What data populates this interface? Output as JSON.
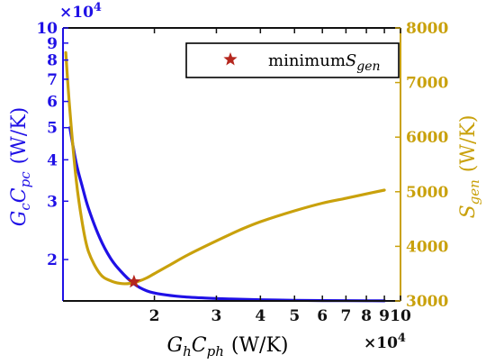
{
  "chart_data": {
    "type": "line",
    "x_axis": {
      "label": "G_h C_ph (W/K)",
      "label_parts": {
        "main": "G",
        "sub1": "h",
        "mid": "C",
        "sub2": "ph",
        "unit": "(W/K)"
      },
      "scale": "log",
      "range": [
        11000,
        100000
      ],
      "ticks": [
        20000,
        30000,
        40000,
        50000,
        60000,
        70000,
        80000,
        90000,
        100000
      ],
      "tick_labels": [
        "2",
        "3",
        "4",
        "5",
        "6",
        "7",
        "8",
        "9",
        "10"
      ],
      "multiplier": "×10",
      "multiplier_exp": "4"
    },
    "y_left": {
      "label": "G_c C_pc (W/K)",
      "label_parts": {
        "main": "G",
        "sub1": "c",
        "mid": "C",
        "sub2": "pc",
        "unit": "(W/K)"
      },
      "scale": "log",
      "range": [
        15000,
        100000
      ],
      "ticks": [
        20000,
        30000,
        40000,
        50000,
        60000,
        70000,
        80000,
        90000,
        100000
      ],
      "tick_labels": [
        "2",
        "3",
        "4",
        "5",
        "6",
        "7",
        "8",
        "9",
        "10"
      ],
      "multiplier": "×10",
      "multiplier_exp": "4",
      "color": "#1f10e6"
    },
    "y_right": {
      "label": "S_gen (W/K)",
      "label_parts": {
        "main": "S",
        "sub1": "gen",
        "unit": "(W/K)"
      },
      "scale": "linear",
      "range": [
        3000,
        8000
      ],
      "ticks": [
        3000,
        4000,
        5000,
        6000,
        7000,
        8000
      ],
      "tick_labels": [
        "3000",
        "4000",
        "5000",
        "6000",
        "7000",
        "8000"
      ],
      "color": "#c9a10c"
    },
    "series": [
      {
        "axis": "left",
        "color": "#1f10e6",
        "x": [
          11500,
          12000,
          12500,
          13000,
          14000,
          15000,
          16000,
          17500,
          19000,
          21000,
          24000,
          28000,
          33000,
          40000,
          50000,
          60000,
          70000,
          80000,
          90000
        ],
        "y": [
          50000,
          39000,
          33000,
          28500,
          23200,
          20200,
          18500,
          16900,
          16100,
          15700,
          15450,
          15300,
          15200,
          15120,
          15070,
          15040,
          15030,
          15020,
          15010
        ]
      },
      {
        "axis": "right",
        "color": "#c9a10c",
        "x": [
          11200,
          11500,
          12000,
          12500,
          13000,
          14000,
          15000,
          16000,
          17000,
          18000,
          19000,
          20000,
          22000,
          25000,
          30000,
          35000,
          40000,
          50000,
          60000,
          70000,
          80000,
          90000
        ],
        "y": [
          7550,
          6500,
          5200,
          4400,
          3900,
          3500,
          3370,
          3320,
          3320,
          3360,
          3420,
          3500,
          3650,
          3850,
          4100,
          4300,
          4450,
          4650,
          4790,
          4880,
          4960,
          5030
        ]
      }
    ],
    "marker": {
      "x": 17500,
      "y_right": 3350,
      "shape": "star",
      "color": "#b5271e"
    },
    "legend": {
      "position": "top-right",
      "entries": [
        {
          "marker": "star",
          "text_main": "minimum",
          "text_italic": "S",
          "text_sub": "gen"
        }
      ]
    }
  }
}
